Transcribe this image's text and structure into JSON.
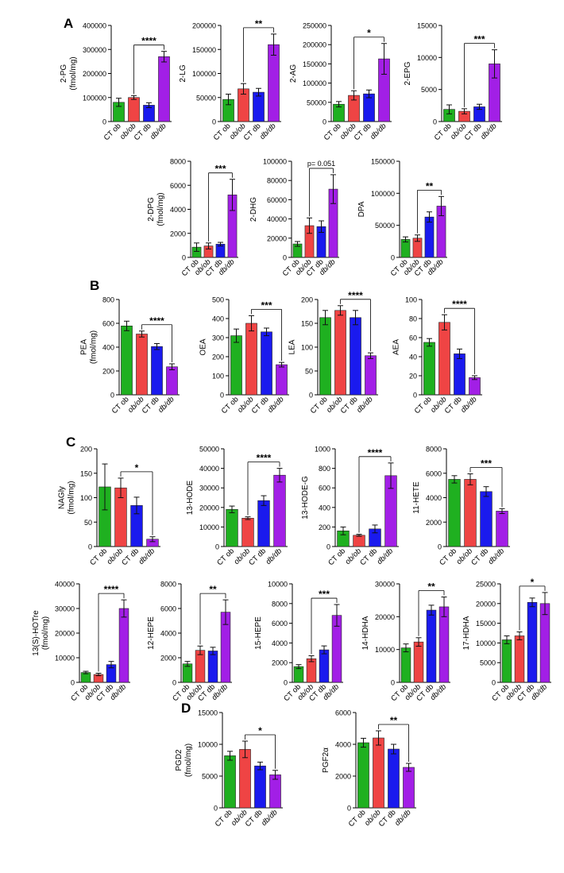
{
  "panels": {
    "A": "A",
    "B": "B",
    "C": "C",
    "D": "D"
  },
  "group_colors": [
    "#1fb020",
    "#ef4444",
    "#1a1aee",
    "#a21fe6"
  ],
  "chart_data": [
    {
      "id": "2PG",
      "panel": "A",
      "type": "bar",
      "categories": [
        "CT ob",
        "ob/ob",
        "CT db",
        "db/db"
      ],
      "values": [
        80000,
        100000,
        68000,
        270000
      ],
      "errors": [
        17000,
        8000,
        10000,
        22000
      ],
      "ylabel": [
        "2-PG",
        "(fmol/mg)"
      ],
      "ylim": [
        0,
        400000
      ],
      "yticks": [
        0,
        100000,
        200000,
        300000,
        400000
      ],
      "sig": {
        "label": "****",
        "from": 1,
        "to": 3
      }
    },
    {
      "id": "2LG",
      "panel": "A",
      "type": "bar",
      "categories": [
        "CT ob",
        "ob/ob",
        "CT db",
        "db/db"
      ],
      "values": [
        46000,
        68000,
        61000,
        160000
      ],
      "errors": [
        11000,
        11000,
        8000,
        22000
      ],
      "ylabel": [
        "2-LG"
      ],
      "ylim": [
        0,
        200000
      ],
      "yticks": [
        0,
        50000,
        100000,
        150000,
        200000
      ],
      "sig": {
        "label": "**",
        "from": 1,
        "to": 3
      }
    },
    {
      "id": "2AG",
      "panel": "A",
      "type": "bar",
      "categories": [
        "CT ob",
        "ob/ob",
        "CT db",
        "db/db"
      ],
      "values": [
        45000,
        68000,
        72000,
        163000
      ],
      "errors": [
        7000,
        12000,
        10000,
        40000
      ],
      "ylabel": [
        "2-AG"
      ],
      "ylim": [
        0,
        250000
      ],
      "yticks": [
        0,
        50000,
        100000,
        150000,
        200000,
        250000
      ],
      "sig": {
        "label": "*",
        "from": 1,
        "to": 3
      }
    },
    {
      "id": "2EPG",
      "panel": "A",
      "type": "bar",
      "categories": [
        "CT ob",
        "ob/ob",
        "CT db",
        "db/db"
      ],
      "values": [
        1900,
        1600,
        2300,
        9000
      ],
      "errors": [
        700,
        400,
        400,
        2200
      ],
      "ylabel": [
        "2-EPG"
      ],
      "ylim": [
        0,
        15000
      ],
      "yticks": [
        0,
        5000,
        10000,
        15000
      ],
      "sig": {
        "label": "***",
        "from": 1,
        "to": 3
      }
    },
    {
      "id": "2DPG",
      "panel": "A",
      "type": "bar",
      "categories": [
        "CT ob",
        "ob/ob",
        "CT db",
        "db/db"
      ],
      "values": [
        850,
        950,
        1100,
        5200
      ],
      "errors": [
        350,
        250,
        150,
        1300
      ],
      "ylabel": [
        "2-DPG",
        "(fmol/mg)"
      ],
      "ylim": [
        0,
        8000
      ],
      "yticks": [
        0,
        2000,
        4000,
        6000,
        8000
      ],
      "sig": {
        "label": "***",
        "from": 1,
        "to": 3
      }
    },
    {
      "id": "2DHG",
      "panel": "A",
      "type": "bar",
      "categories": [
        "CT ob",
        "ob/ob",
        "CT db",
        "db/db"
      ],
      "values": [
        14000,
        33000,
        32000,
        71000
      ],
      "errors": [
        2500,
        8000,
        6000,
        15000
      ],
      "ylabel": [
        "2-DHG"
      ],
      "ylim": [
        0,
        100000
      ],
      "yticks": [
        0,
        20000,
        40000,
        60000,
        80000,
        100000
      ],
      "sig": {
        "label": "p= 0.051",
        "from": 1,
        "to": 3
      }
    },
    {
      "id": "DPA",
      "panel": "A",
      "type": "bar",
      "categories": [
        "CT ob",
        "ob/ob",
        "CT db",
        "db/db"
      ],
      "values": [
        28000,
        30000,
        63000,
        80000
      ],
      "errors": [
        4000,
        5000,
        8000,
        15000
      ],
      "ylabel": [
        "DPA"
      ],
      "ylim": [
        0,
        150000
      ],
      "yticks": [
        0,
        50000,
        100000,
        150000
      ],
      "sig": {
        "label": "**",
        "from": 1,
        "to": 3
      }
    },
    {
      "id": "PEA",
      "panel": "B",
      "type": "bar",
      "categories": [
        "CT ob",
        "ob/ob",
        "CT db",
        "db/db"
      ],
      "values": [
        578,
        510,
        405,
        235
      ],
      "errors": [
        40,
        25,
        25,
        25
      ],
      "ylabel": [
        "PEA",
        "(fmol/mg)"
      ],
      "ylim": [
        0,
        800
      ],
      "yticks": [
        0,
        200,
        400,
        600,
        800
      ],
      "sig": {
        "label": "****",
        "from": 1,
        "to": 3
      }
    },
    {
      "id": "OEA",
      "panel": "B",
      "type": "bar",
      "categories": [
        "CT ob",
        "ob/ob",
        "CT db",
        "db/db"
      ],
      "values": [
        310,
        375,
        330,
        158
      ],
      "errors": [
        35,
        40,
        20,
        12
      ],
      "ylabel": [
        "OEA"
      ],
      "ylim": [
        0,
        500
      ],
      "yticks": [
        0,
        100,
        200,
        300,
        400,
        500
      ],
      "sig": {
        "label": "***",
        "from": 1,
        "to": 3
      }
    },
    {
      "id": "LEA",
      "panel": "B",
      "type": "bar",
      "categories": [
        "CT ob",
        "ob/ob",
        "CT db",
        "db/db"
      ],
      "values": [
        162,
        177,
        162,
        82
      ],
      "errors": [
        15,
        10,
        15,
        6
      ],
      "ylabel": [
        "LEA"
      ],
      "ylim": [
        0,
        200
      ],
      "yticks": [
        0,
        50,
        100,
        150,
        200
      ],
      "sig": {
        "label": "****",
        "from": 1,
        "to": 3
      }
    },
    {
      "id": "AEA",
      "panel": "B",
      "type": "bar",
      "categories": [
        "CT ob",
        "ob/ob",
        "CT db",
        "db/db"
      ],
      "values": [
        55,
        76,
        43,
        18
      ],
      "errors": [
        4,
        8,
        5,
        2
      ],
      "ylabel": [
        "AEA"
      ],
      "ylim": [
        0,
        100
      ],
      "yticks": [
        0,
        20,
        40,
        60,
        80,
        100
      ],
      "sig": {
        "label": "****",
        "from": 1,
        "to": 3
      }
    },
    {
      "id": "NAGly",
      "panel": "C",
      "type": "bar",
      "categories": [
        "CT ob",
        "ob/ob",
        "CT db",
        "db/db"
      ],
      "values": [
        122,
        120,
        84,
        15
      ],
      "errors": [
        47,
        20,
        17,
        5
      ],
      "ylabel": [
        "NAGly",
        "(fmol/mg)"
      ],
      "ylim": [
        0,
        200
      ],
      "yticks": [
        0,
        50,
        100,
        150,
        200
      ],
      "sig": {
        "label": "*",
        "from": 1,
        "to": 3
      }
    },
    {
      "id": "13HODE",
      "panel": "C",
      "type": "bar",
      "categories": [
        "CT ob",
        "ob/ob",
        "CT db",
        "db/db"
      ],
      "values": [
        19000,
        14500,
        23500,
        36500
      ],
      "errors": [
        1700,
        700,
        2500,
        3500
      ],
      "ylabel": [
        "13-HODE"
      ],
      "ylim": [
        0,
        50000
      ],
      "yticks": [
        0,
        10000,
        20000,
        30000,
        40000,
        50000
      ],
      "sig": {
        "label": "****",
        "from": 1,
        "to": 3
      }
    },
    {
      "id": "13HODEG",
      "panel": "C",
      "type": "bar",
      "categories": [
        "CT ob",
        "ob/ob",
        "CT db",
        "db/db"
      ],
      "values": [
        160,
        115,
        180,
        725
      ],
      "errors": [
        40,
        10,
        40,
        130
      ],
      "ylabel": [
        "13-HODE-G"
      ],
      "ylim": [
        0,
        1000
      ],
      "yticks": [
        0,
        200,
        400,
        600,
        800,
        1000
      ],
      "sig": {
        "label": "****",
        "from": 1,
        "to": 3
      }
    },
    {
      "id": "11HETE",
      "panel": "C",
      "type": "bar",
      "categories": [
        "CT ob",
        "ob/ob",
        "CT db",
        "db/db"
      ],
      "values": [
        5500,
        5500,
        4500,
        2900
      ],
      "errors": [
        300,
        450,
        400,
        200
      ],
      "ylabel": [
        "11-HETE"
      ],
      "ylim": [
        0,
        8000
      ],
      "yticks": [
        0,
        2000,
        4000,
        6000,
        8000
      ],
      "sig": {
        "label": "***",
        "from": 1,
        "to": 3
      }
    },
    {
      "id": "13SHOTre",
      "panel": "C",
      "type": "bar",
      "categories": [
        "CT ob",
        "ob/ob",
        "CT db",
        "db/db"
      ],
      "values": [
        4000,
        3200,
        7200,
        30000
      ],
      "errors": [
        500,
        500,
        1300,
        3500
      ],
      "ylabel": [
        "13(S)-HOTre",
        "(fmol/mg)"
      ],
      "ylim": [
        0,
        40000
      ],
      "yticks": [
        0,
        10000,
        20000,
        30000,
        40000
      ],
      "sig": {
        "label": "****",
        "from": 1,
        "to": 3
      }
    },
    {
      "id": "12HEPE",
      "panel": "C",
      "type": "bar",
      "categories": [
        "CT ob",
        "ob/ob",
        "CT db",
        "db/db"
      ],
      "values": [
        1500,
        2600,
        2550,
        5700
      ],
      "errors": [
        200,
        350,
        300,
        1000
      ],
      "ylabel": [
        "12-HEPE"
      ],
      "ylim": [
        0,
        8000
      ],
      "yticks": [
        0,
        2000,
        4000,
        6000,
        8000
      ],
      "sig": {
        "label": "**",
        "from": 1,
        "to": 3
      }
    },
    {
      "id": "15HEPE",
      "panel": "C",
      "type": "bar",
      "categories": [
        "CT ob",
        "ob/ob",
        "CT db",
        "db/db"
      ],
      "values": [
        1600,
        2400,
        3300,
        6800
      ],
      "errors": [
        200,
        300,
        400,
        1100
      ],
      "ylabel": [
        "15-HEPE"
      ],
      "ylim": [
        0,
        10000
      ],
      "yticks": [
        0,
        2000,
        4000,
        6000,
        8000,
        10000
      ],
      "sig": {
        "label": "***",
        "from": 1,
        "to": 3
      }
    },
    {
      "id": "14HDHA",
      "panel": "C",
      "type": "bar",
      "categories": [
        "CT ob",
        "ob/ob",
        "CT db",
        "db/db"
      ],
      "values": [
        10500,
        12300,
        22000,
        23000
      ],
      "errors": [
        1200,
        1300,
        1500,
        3000
      ],
      "ylabel": [
        "14-HDHA"
      ],
      "ylim": [
        0,
        30000
      ],
      "yticks": [
        0,
        10000,
        20000,
        30000
      ],
      "sig": {
        "label": "**",
        "from": 1,
        "to": 3
      }
    },
    {
      "id": "17HDHA",
      "panel": "C",
      "type": "bar",
      "categories": [
        "CT ob",
        "ob/ob",
        "CT db",
        "db/db"
      ],
      "values": [
        10800,
        11800,
        20300,
        20000
      ],
      "errors": [
        1000,
        1000,
        1100,
        2800
      ],
      "ylabel": [
        "17-HDHA"
      ],
      "ylim": [
        0,
        25000
      ],
      "yticks": [
        0,
        5000,
        10000,
        15000,
        20000,
        25000
      ],
      "sig": {
        "label": "*",
        "from": 1,
        "to": 3
      }
    },
    {
      "id": "PGD2",
      "panel": "D",
      "type": "bar",
      "categories": [
        "CT ob",
        "ob/ob",
        "CT db",
        "db/db"
      ],
      "values": [
        8200,
        9200,
        6600,
        5200
      ],
      "errors": [
        700,
        1300,
        600,
        700
      ],
      "ylabel": [
        "PGD2",
        "(fmol/mg)"
      ],
      "ylim": [
        0,
        15000
      ],
      "yticks": [
        0,
        5000,
        10000,
        15000
      ],
      "sig": {
        "label": "*",
        "from": 1,
        "to": 3
      }
    },
    {
      "id": "PGF2a",
      "panel": "D",
      "type": "bar",
      "categories": [
        "CT ob",
        "ob/ob",
        "CT db",
        "db/db"
      ],
      "values": [
        4100,
        4400,
        3700,
        2550
      ],
      "errors": [
        280,
        450,
        300,
        250
      ],
      "ylabel": [
        "PGF2α"
      ],
      "ylim": [
        0,
        6000
      ],
      "yticks": [
        0,
        2000,
        4000,
        6000
      ],
      "sig": {
        "label": "**",
        "from": 1,
        "to": 3
      }
    }
  ]
}
